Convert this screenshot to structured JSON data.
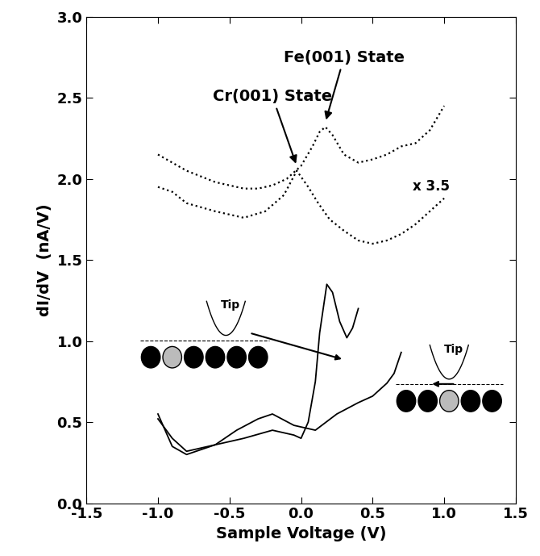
{
  "chart_data": {
    "type": "line",
    "x_label": "Sample Voltage (V)",
    "y_label": "dI/dV  (nA/V)",
    "xlim": [
      -1.5,
      1.5
    ],
    "xticks": [
      {
        "value": -1.5,
        "label": "-1.5"
      },
      {
        "value": -1.0,
        "label": "-1.0"
      },
      {
        "value": -0.5,
        "label": "-0.5"
      },
      {
        "value": 0.0,
        "label": "0.0"
      },
      {
        "value": 0.5,
        "label": "0.5"
      },
      {
        "value": 1.0,
        "label": "1.0"
      },
      {
        "value": 1.5,
        "label": "1.5"
      }
    ],
    "ylim": [
      0.0,
      3.0
    ],
    "yticks": [
      {
        "value": 0.0,
        "label": "0.0"
      },
      {
        "value": 0.5,
        "label": "0.5"
      },
      {
        "value": 1.0,
        "label": "1.0"
      },
      {
        "value": 1.5,
        "label": "1.5"
      },
      {
        "value": 2.0,
        "label": "2.0"
      },
      {
        "value": 2.5,
        "label": "2.5"
      },
      {
        "value": 3.0,
        "label": "3.0"
      }
    ],
    "grid": false,
    "annotations": [
      "Fe(001) State",
      "Cr(001) State",
      "x 3.5",
      "Tip",
      "Tip"
    ],
    "series": [
      {
        "color": "#000000",
        "line_style": "dotted",
        "x": [
          -1.0,
          -0.8,
          -0.6,
          -0.4,
          -0.3,
          -0.2,
          -0.1,
          0.0,
          0.08,
          0.13,
          0.17,
          0.22,
          0.3,
          0.4,
          0.5,
          0.6,
          0.7,
          0.8,
          0.9,
          1.0
        ],
        "values": [
          2.15,
          2.05,
          1.98,
          1.94,
          1.94,
          1.96,
          2.0,
          2.08,
          2.2,
          2.29,
          2.32,
          2.27,
          2.15,
          2.1,
          2.12,
          2.15,
          2.2,
          2.22,
          2.3,
          2.45
        ]
      },
      {
        "color": "#000000",
        "line_style": "dotted",
        "x": [
          -1.0,
          -0.9,
          -0.8,
          -0.6,
          -0.4,
          -0.25,
          -0.12,
          -0.03,
          0.05,
          0.12,
          0.2,
          0.3,
          0.4,
          0.5,
          0.6,
          0.7,
          0.8,
          0.9,
          1.0
        ],
        "values": [
          1.95,
          1.92,
          1.85,
          1.8,
          1.76,
          1.8,
          1.9,
          2.05,
          1.95,
          1.85,
          1.75,
          1.68,
          1.62,
          1.6,
          1.62,
          1.66,
          1.72,
          1.8,
          1.88
        ]
      },
      {
        "color": "#000000",
        "line_style": "solid",
        "x": [
          -1.0,
          -0.9,
          -0.8,
          -0.6,
          -0.4,
          -0.2,
          -0.05,
          0.0,
          0.05,
          0.1,
          0.13,
          0.18,
          0.22,
          0.27,
          0.32,
          0.36,
          0.4
        ],
        "values": [
          0.52,
          0.4,
          0.32,
          0.36,
          0.4,
          0.45,
          0.42,
          0.4,
          0.5,
          0.75,
          1.05,
          1.35,
          1.3,
          1.12,
          1.02,
          1.08,
          1.2
        ]
      },
      {
        "color": "#000000",
        "line_style": "solid",
        "x": [
          -1.0,
          -0.9,
          -0.8,
          -0.6,
          -0.45,
          -0.3,
          -0.2,
          -0.05,
          0.1,
          0.25,
          0.4,
          0.5,
          0.6,
          0.65,
          0.7
        ],
        "values": [
          0.55,
          0.35,
          0.3,
          0.36,
          0.45,
          0.52,
          0.55,
          0.48,
          0.45,
          0.55,
          0.62,
          0.66,
          0.74,
          0.8,
          0.93
        ]
      }
    ]
  }
}
